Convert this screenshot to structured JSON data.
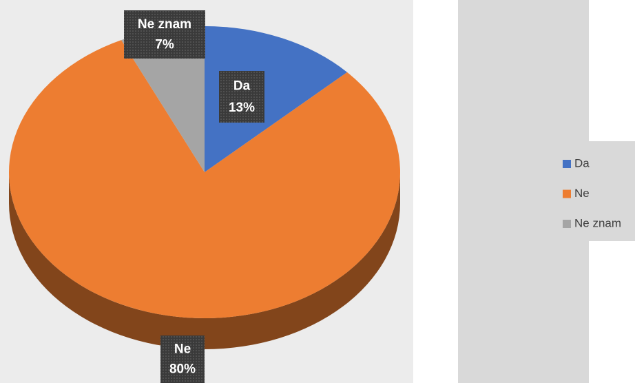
{
  "chart_data": {
    "type": "pie",
    "categories": [
      "Da",
      "Ne",
      "Ne znam"
    ],
    "values": [
      13,
      80,
      7
    ],
    "value_labels": [
      "13%",
      "80%",
      "7%"
    ],
    "colors": [
      "#4472c4",
      "#ed7d31",
      "#a5a5a5"
    ],
    "legend": "right"
  }
}
